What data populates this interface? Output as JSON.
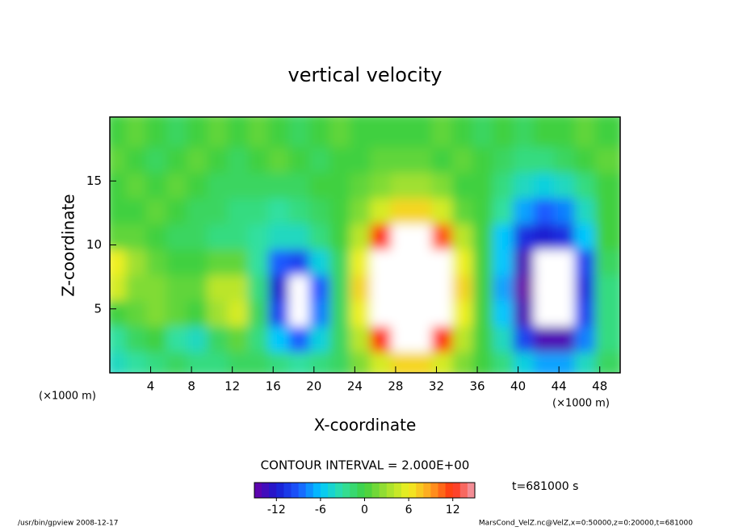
{
  "chart_data": {
    "type": "contour",
    "title": "vertical velocity",
    "x_label": "X-coordinate",
    "y_label": "Z-coordinate",
    "x_unit": "(×1000 m)",
    "y_unit": "(×1000 m)",
    "xlim": [
      0,
      50
    ],
    "ylim": [
      0,
      20
    ],
    "xticks": [
      4,
      8,
      12,
      16,
      20,
      24,
      28,
      32,
      36,
      40,
      44,
      48
    ],
    "yticks": [
      5,
      10,
      15
    ],
    "x": [
      1,
      3,
      5,
      7,
      9,
      11,
      13,
      15,
      17,
      19,
      21,
      23,
      25,
      27,
      29,
      31,
      33,
      35,
      37,
      39,
      41,
      43,
      45,
      47,
      49
    ],
    "y": [
      1,
      3,
      5,
      7,
      9,
      11,
      13,
      15,
      17,
      19
    ],
    "values": [
      [
        -4,
        -3,
        -2,
        -1,
        -2,
        -2,
        -1,
        -1,
        -2,
        -3,
        -2,
        -1,
        2,
        5,
        7,
        7,
        5,
        2,
        0,
        -2,
        -5,
        -7,
        -7,
        -4,
        -1
      ],
      [
        -3,
        -1,
        0,
        -3,
        -4,
        -1,
        1,
        -2,
        -6,
        -9,
        -5,
        -1,
        4,
        12,
        17,
        17,
        12,
        4,
        0,
        -4,
        -10,
        -14,
        -14,
        -8,
        -2
      ],
      [
        0,
        1,
        2,
        1,
        0,
        3,
        5,
        -1,
        -10,
        -16,
        -8,
        -1,
        6,
        17,
        20,
        20,
        17,
        6,
        0,
        -6,
        -14,
        -18,
        -18,
        -10,
        -2
      ],
      [
        5,
        2,
        2,
        1,
        1,
        4,
        4,
        -2,
        -12,
        -17,
        -9,
        -1,
        7,
        18,
        20,
        20,
        18,
        7,
        0,
        -7,
        -15,
        -18,
        -18,
        -11,
        -2
      ],
      [
        6,
        3,
        1,
        0,
        0,
        1,
        1,
        -3,
        -9,
        -10,
        -5,
        -1,
        6,
        17,
        20,
        20,
        17,
        6,
        0,
        -6,
        -14,
        -17,
        -17,
        -10,
        -1
      ],
      [
        1,
        1,
        0,
        -1,
        -1,
        -2,
        -2,
        -3,
        -4,
        -4,
        -2,
        0,
        4,
        12,
        16,
        16,
        11,
        4,
        0,
        -6,
        -11,
        -12,
        -11,
        -6,
        0
      ],
      [
        0,
        0,
        1,
        0,
        -1,
        -1,
        -2,
        -2,
        -3,
        -2,
        -1,
        0,
        2,
        5,
        7,
        7,
        5,
        1,
        0,
        -3,
        -7,
        -9,
        -8,
        -4,
        0
      ],
      [
        0,
        1,
        0,
        1,
        0,
        -1,
        -1,
        -1,
        -1,
        -1,
        0,
        0,
        1,
        2,
        3,
        3,
        2,
        0,
        0,
        -2,
        -4,
        -5,
        -4,
        -2,
        0
      ],
      [
        1,
        0,
        -1,
        0,
        1,
        0,
        -1,
        0,
        1,
        0,
        -1,
        0,
        0,
        1,
        1,
        1,
        0,
        1,
        0,
        -1,
        -2,
        -2,
        -1,
        0,
        1
      ],
      [
        0,
        1,
        0,
        -1,
        0,
        1,
        0,
        1,
        0,
        -1,
        0,
        1,
        0,
        0,
        0,
        0,
        1,
        0,
        -1,
        0,
        -1,
        0,
        0,
        1,
        0
      ]
    ],
    "contour_interval": "CONTOUR INTERVAL = 2.000E+00",
    "clim": [
      -15,
      15
    ],
    "colorbar_ticks": [
      -12,
      -6,
      0,
      6,
      12
    ],
    "time_label": "t=681000 s",
    "footer_left": "/usr/bin/gpview  2008-12-17",
    "footer_right": "MarsCond_VelZ.nc@VelZ,x=0:50000,z=0:20000,t=681000"
  }
}
